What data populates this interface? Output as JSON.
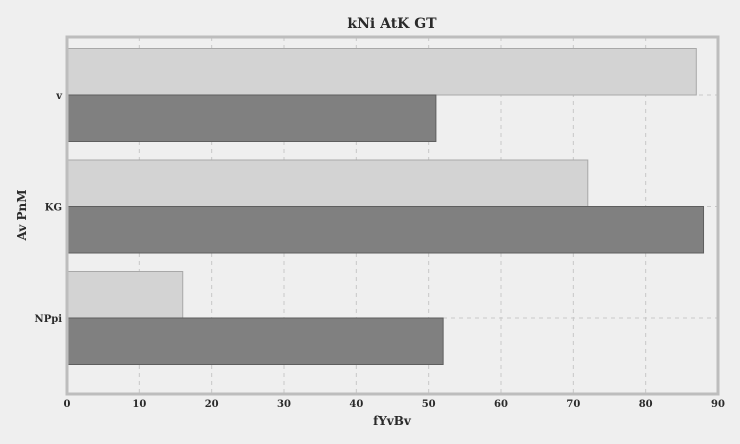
{
  "chart_data": {
    "type": "bar",
    "orientation": "horizontal",
    "title": "kNi AtK GT",
    "xlabel": "fYvBv",
    "ylabel": "Av PnM",
    "categories": [
      "v",
      "KG",
      "NPpi"
    ],
    "series": [
      {
        "values": [
          87,
          72,
          16
        ],
        "color": "#d3d3d3"
      },
      {
        "values": [
          51,
          88,
          52
        ],
        "color": "#808080"
      }
    ],
    "xlim": [
      0,
      90
    ],
    "xticks": [
      0,
      10,
      20,
      30,
      40,
      50,
      60,
      70,
      80,
      90
    ],
    "grid": true,
    "legend": "none",
    "colors": {
      "background": "#efefef",
      "frame": "#bdbdbd",
      "grid": "#c8c8c8"
    }
  }
}
